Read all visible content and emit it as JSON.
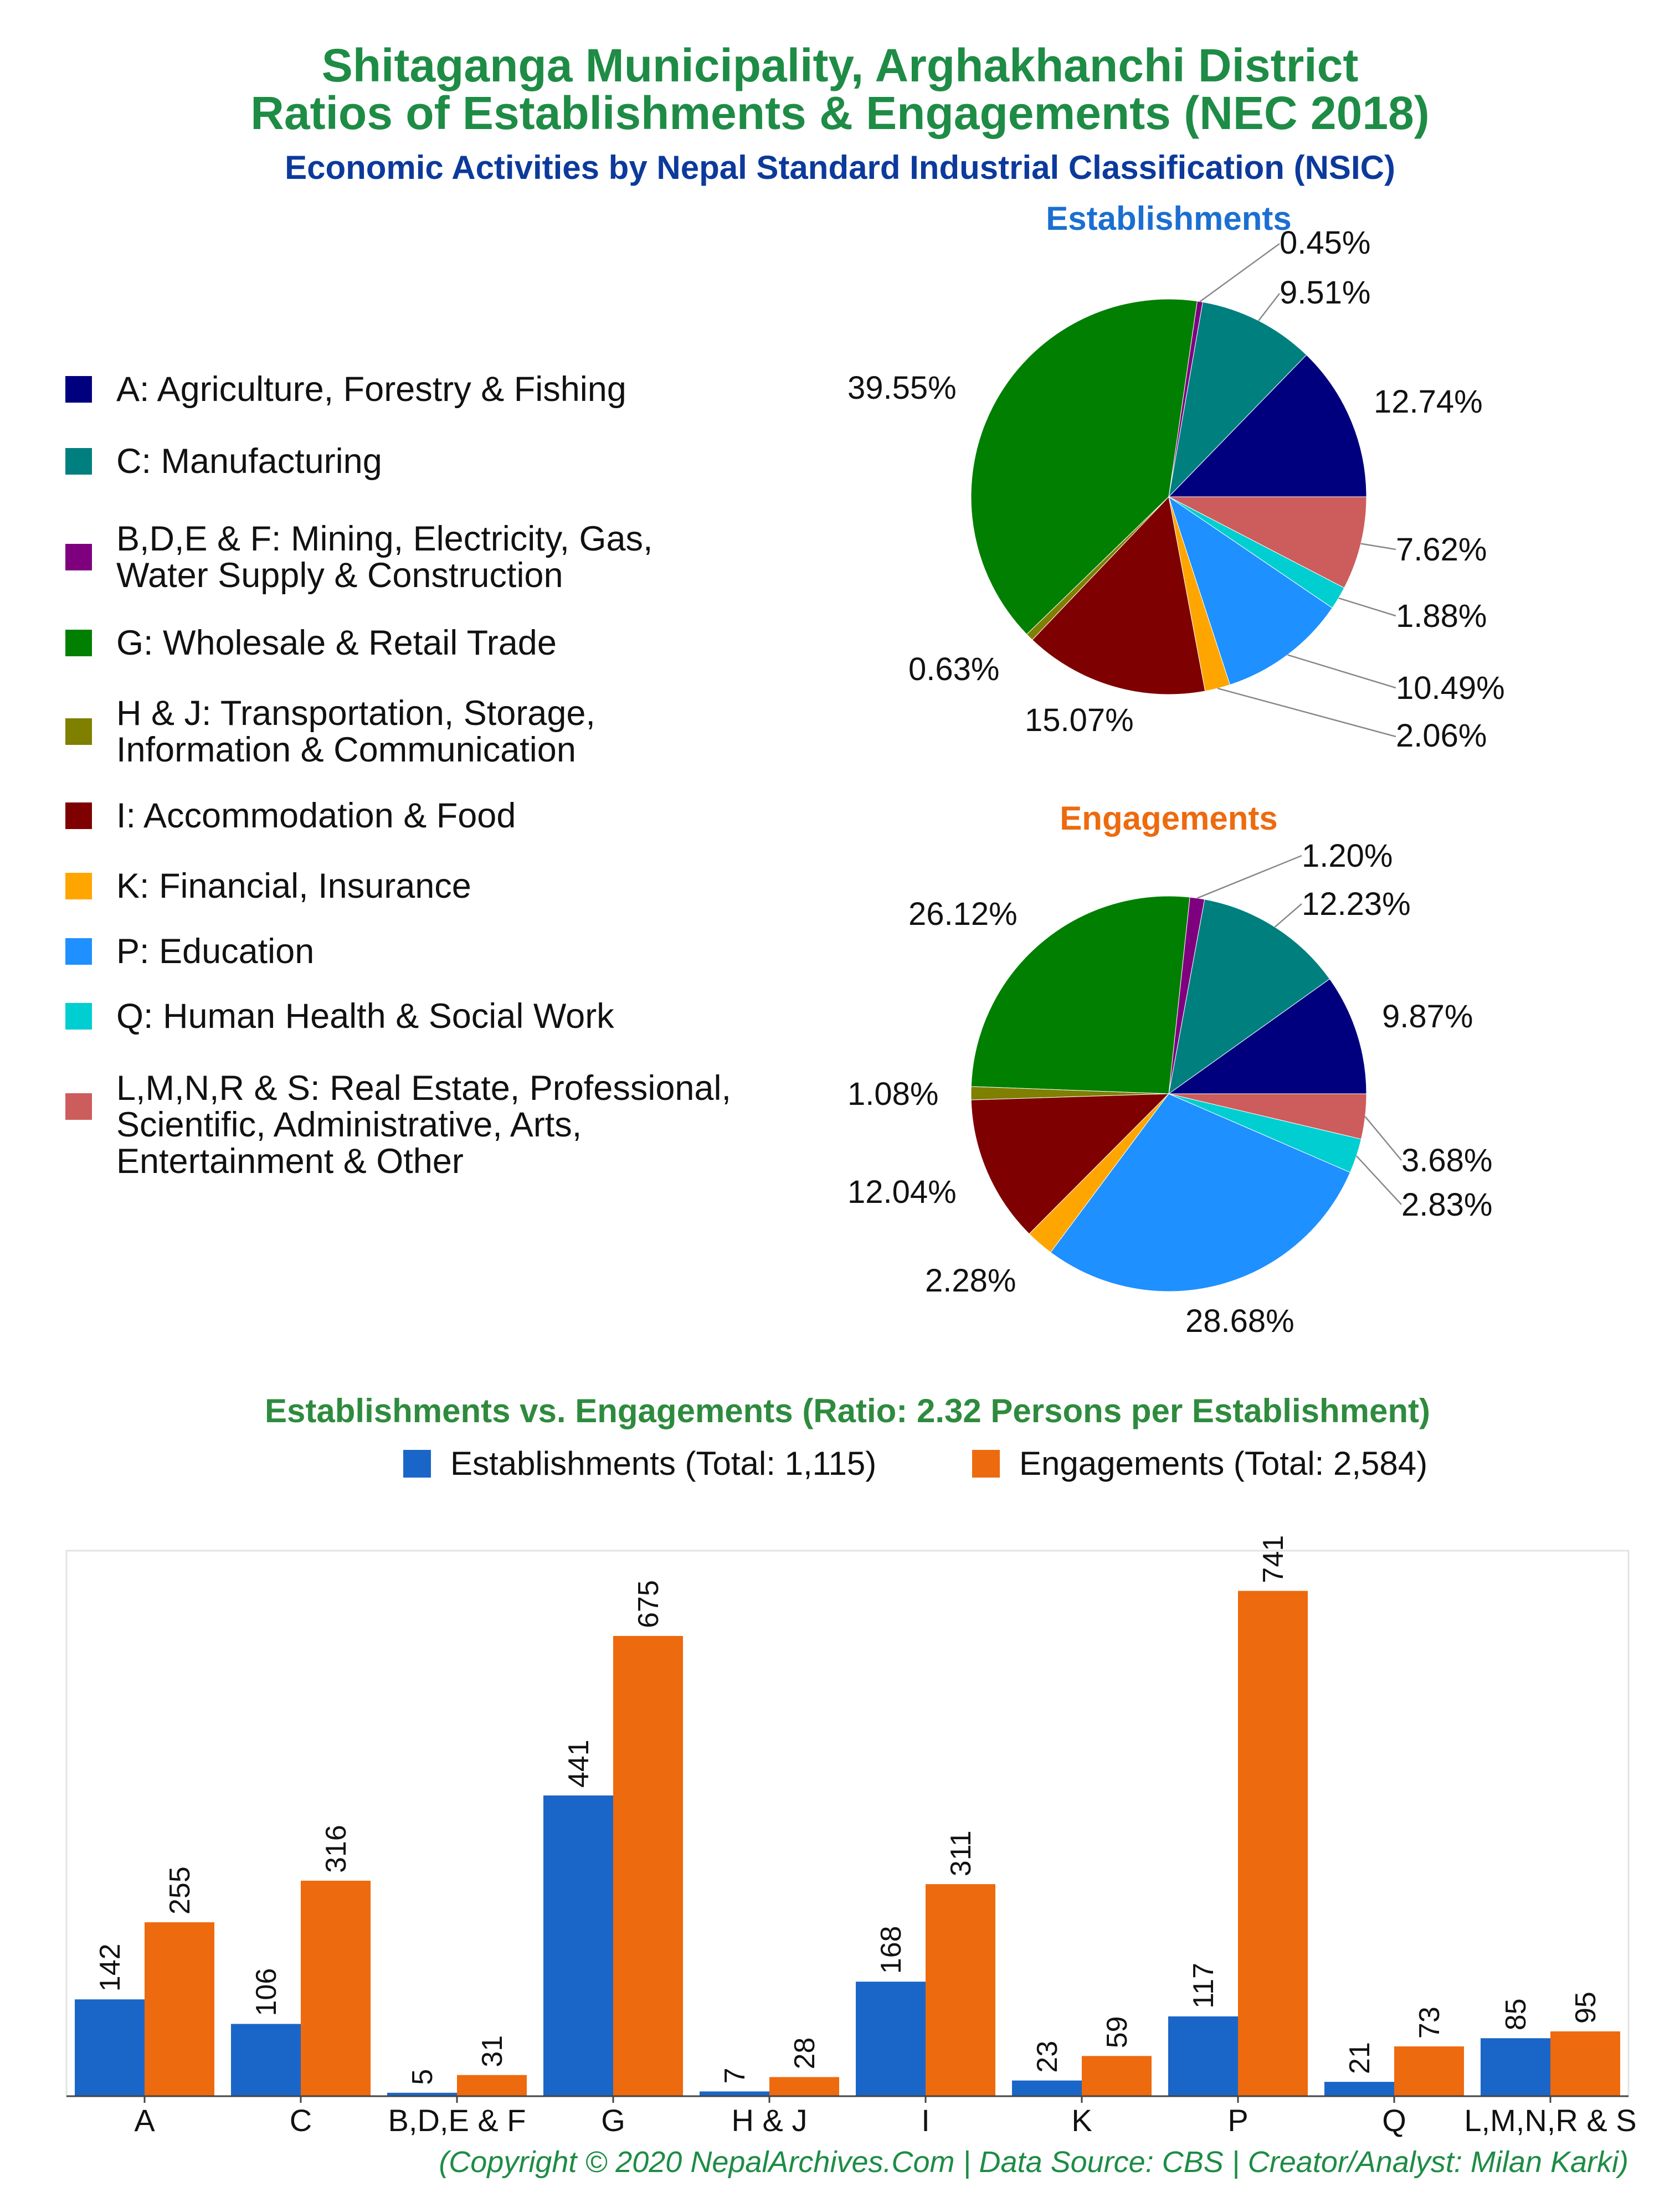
{
  "titles": {
    "line1": "Shitaganga Municipality, Arghakhanchi District",
    "line2": "Ratios of Establishments & Engagements (NEC 2018)",
    "subtitle": "Economic Activities by Nepal Standard Industrial Classification (NSIC)"
  },
  "legend": [
    {
      "label": "A: Agriculture, Forestry & Fishing",
      "color": "#00007f"
    },
    {
      "label": "C: Manufacturing",
      "color": "#007f7f"
    },
    {
      "label": "B,D,E & F: Mining, Electricity, Gas,\nWater Supply & Construction",
      "color": "#7f007f"
    },
    {
      "label": "G: Wholesale & Retail Trade",
      "color": "#007f00"
    },
    {
      "label": "H & J: Transportation, Storage,\nInformation & Communication",
      "color": "#7f7f00"
    },
    {
      "label": "I: Accommodation & Food",
      "color": "#7f0000"
    },
    {
      "label": "K: Financial, Insurance",
      "color": "#ffa500"
    },
    {
      "label": "P: Education",
      "color": "#1e90ff"
    },
    {
      "label": "Q: Human Health & Social Work",
      "color": "#00ced1"
    },
    {
      "label": "L,M,N,R & S: Real Estate, Professional,\nScientific, Administrative, Arts,\nEntertainment & Other",
      "color": "#cd5c5c"
    }
  ],
  "footer": "(Copyright © 2020 NepalArchives.Com | Data Source: CBS | Creator/Analyst: Milan Karki)",
  "chart_data": [
    {
      "type": "pie",
      "title": "Establishments",
      "title_color": "#1c6fd1",
      "categories": [
        "A",
        "C",
        "B,D,E & F",
        "G",
        "H & J",
        "I",
        "K",
        "P",
        "Q",
        "L,M,N,R & S"
      ],
      "values": [
        12.74,
        9.51,
        0.45,
        39.55,
        0.63,
        15.07,
        2.06,
        10.49,
        1.88,
        7.62
      ],
      "labels": [
        "12.74%",
        "9.51%",
        "0.45%",
        "39.55%",
        "0.63%",
        "15.07%",
        "2.06%",
        "10.49%",
        "1.88%",
        "7.62%"
      ]
    },
    {
      "type": "pie",
      "title": "Engagements",
      "title_color": "#ee6a0e",
      "categories": [
        "A",
        "C",
        "B,D,E & F",
        "G",
        "H & J",
        "I",
        "K",
        "P",
        "Q",
        "L,M,N,R & S"
      ],
      "values": [
        9.87,
        12.23,
        1.2,
        26.12,
        1.08,
        12.04,
        2.28,
        28.68,
        2.83,
        3.68
      ],
      "labels": [
        "9.87%",
        "12.23%",
        "1.20%",
        "26.12%",
        "1.08%",
        "12.04%",
        "2.28%",
        "28.68%",
        "2.83%",
        "3.68%"
      ]
    },
    {
      "type": "bar",
      "title": "Establishments vs. Engagements (Ratio: 2.32 Persons per Establishment)",
      "title_color": "#2e8b3e",
      "categories": [
        "A",
        "C",
        "B,D,E & F",
        "G",
        "H & J",
        "I",
        "K",
        "P",
        "Q",
        "L,M,N,R & S"
      ],
      "ylim": [
        0,
        800
      ],
      "series": [
        {
          "name": "Establishments (Total: 1,115)",
          "color": "#1a66c8",
          "values": [
            142,
            106,
            5,
            441,
            7,
            168,
            23,
            117,
            21,
            85
          ]
        },
        {
          "name": "Engagements (Total: 2,584)",
          "color": "#ee6a0e",
          "values": [
            255,
            316,
            31,
            675,
            28,
            311,
            59,
            741,
            73,
            95
          ]
        }
      ]
    }
  ]
}
